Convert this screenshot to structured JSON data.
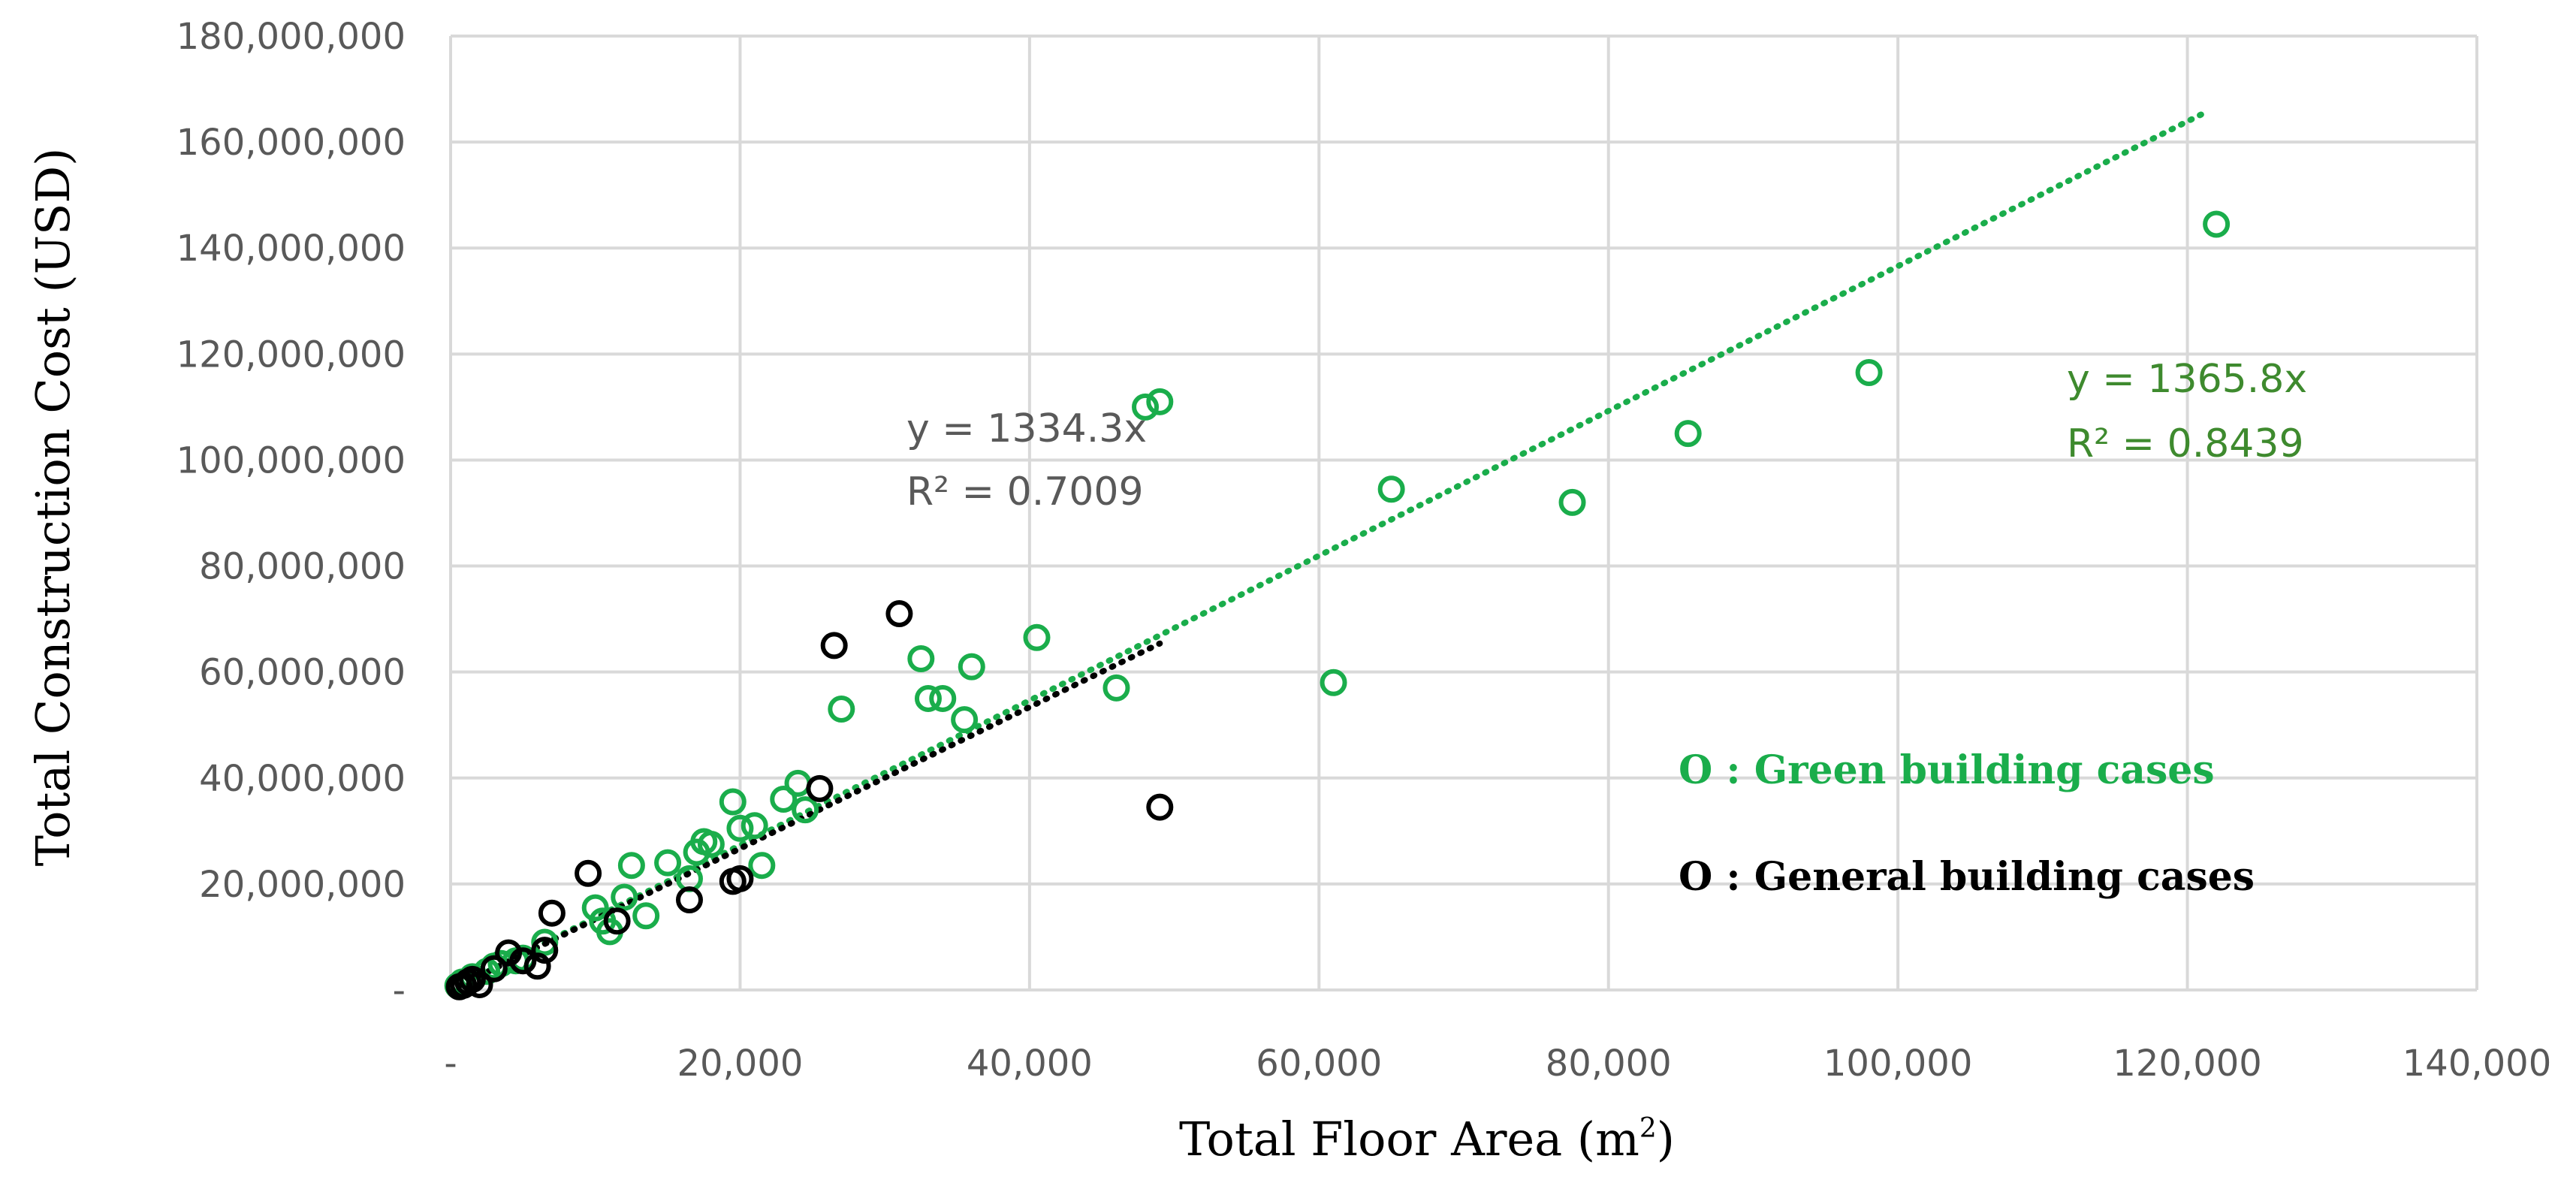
{
  "chart_data": {
    "type": "scatter",
    "xlabel": "Total Floor Area (m",
    "xlabel_sup": "2",
    "xlabel_end": ")",
    "ylabel": "Total Construction Cost (USD)",
    "xlim": [
      0,
      140000
    ],
    "ylim": [
      0,
      180000000
    ],
    "x_ticks": [
      0,
      20000,
      40000,
      60000,
      80000,
      100000,
      120000,
      140000
    ],
    "x_tick_labels": [
      "-",
      "20,000",
      "40,000",
      "60,000",
      "80,000",
      "100,000",
      "120,000",
      "140,000"
    ],
    "y_ticks": [
      0,
      20000000,
      40000000,
      60000000,
      80000000,
      100000000,
      120000000,
      140000000,
      160000000,
      180000000
    ],
    "y_tick_labels": [
      "-",
      "20,000,000",
      "40,000,000",
      "60,000,000",
      "80,000,000",
      "100,000,000",
      "120,000,000",
      "140,000,000",
      "160,000,000",
      "180,000,000"
    ],
    "grid": true,
    "series": [
      {
        "name": "O : Green building cases",
        "color": "#1aad4b",
        "marker": "open-circle",
        "points": [
          [
            500,
            800000
          ],
          [
            800,
            1500000
          ],
          [
            1500,
            2500000
          ],
          [
            2500,
            3500000
          ],
          [
            3000,
            4500000
          ],
          [
            3500,
            5000000
          ],
          [
            4500,
            5500000
          ],
          [
            5000,
            6000000
          ],
          [
            6500,
            9000000
          ],
          [
            10000,
            15500000
          ],
          [
            10500,
            13000000
          ],
          [
            11000,
            11000000
          ],
          [
            12000,
            17500000
          ],
          [
            12500,
            23500000
          ],
          [
            13500,
            14000000
          ],
          [
            15000,
            24000000
          ],
          [
            16500,
            21000000
          ],
          [
            17000,
            26000000
          ],
          [
            17500,
            28000000
          ],
          [
            18000,
            27500000
          ],
          [
            19500,
            35500000
          ],
          [
            20000,
            30500000
          ],
          [
            21000,
            31000000
          ],
          [
            21500,
            23500000
          ],
          [
            23000,
            36000000
          ],
          [
            24000,
            39000000
          ],
          [
            24500,
            34000000
          ],
          [
            27000,
            53000000
          ],
          [
            32500,
            62500000
          ],
          [
            33000,
            55000000
          ],
          [
            34000,
            55000000
          ],
          [
            35500,
            51000000
          ],
          [
            36000,
            61000000
          ],
          [
            40500,
            66500000
          ],
          [
            46000,
            57000000
          ],
          [
            48000,
            110000000
          ],
          [
            49000,
            111000000
          ],
          [
            61000,
            58000000
          ],
          [
            65000,
            94500000
          ],
          [
            77500,
            92000000
          ],
          [
            85500,
            105000000
          ],
          [
            98000,
            116500000
          ],
          [
            122000,
            144500000
          ]
        ]
      },
      {
        "name": "O : General building cases",
        "color": "#000000",
        "marker": "open-circle",
        "points": [
          [
            600,
            600000
          ],
          [
            900,
            900000
          ],
          [
            1200,
            1500000
          ],
          [
            1500,
            2000000
          ],
          [
            2000,
            1000000
          ],
          [
            3000,
            4000000
          ],
          [
            4000,
            7000000
          ],
          [
            5000,
            5500000
          ],
          [
            6000,
            4500000
          ],
          [
            6500,
            7500000
          ],
          [
            7000,
            14500000
          ],
          [
            9500,
            22000000
          ],
          [
            11500,
            13000000
          ],
          [
            16500,
            17000000
          ],
          [
            19500,
            20500000
          ],
          [
            20000,
            21000000
          ],
          [
            25500,
            38000000
          ],
          [
            26500,
            65000000
          ],
          [
            31000,
            71000000
          ],
          [
            49000,
            34500000
          ]
        ]
      }
    ],
    "trendlines": [
      {
        "series": "O : Green building cases",
        "slope": 1365.8,
        "x_range": [
          0,
          121500
        ],
        "equation": "y = 1365.8x",
        "r2": "R² = 0.8439",
        "color": "#1aad4b",
        "label_color": "#3e8a2e"
      },
      {
        "series": "O : General building cases",
        "slope": 1334.3,
        "x_range": [
          0,
          49000
        ],
        "equation": "y = 1334.3x",
        "r2": "R² = 0.7009",
        "color": "#000000",
        "label_color": "#595959"
      }
    ],
    "legend": [
      {
        "text": "O : Green building cases",
        "color": "#1aad4b"
      },
      {
        "text": "O : General building cases",
        "color": "#000000"
      }
    ]
  }
}
